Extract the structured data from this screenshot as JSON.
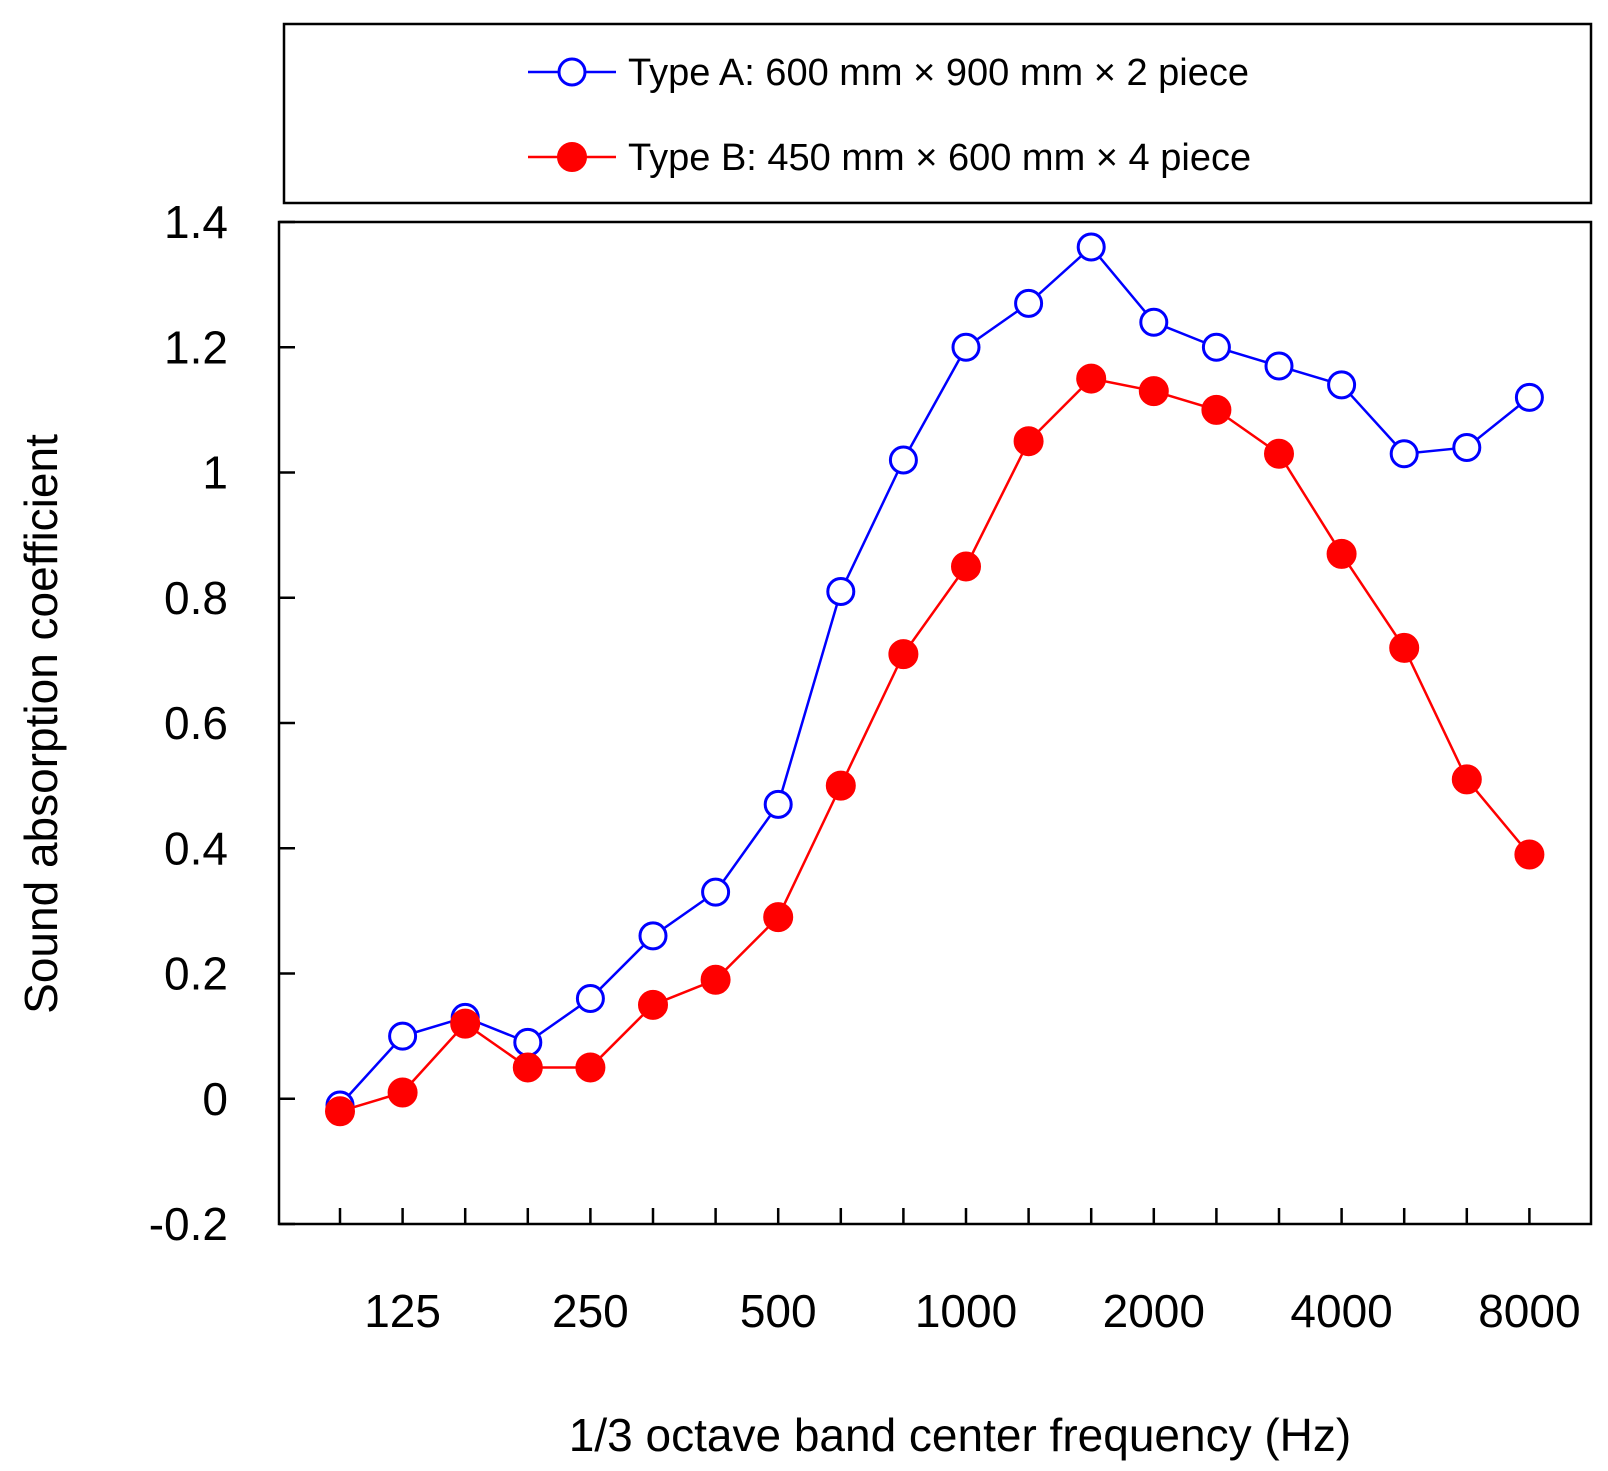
{
  "chart_data": {
    "type": "line",
    "title": "",
    "xlabel": "1/3 octave band center frequency (Hz)",
    "ylabel": "Sound absorption coefficient",
    "ylim": [
      -0.2,
      1.4
    ],
    "y_ticks": [
      -0.2,
      0,
      0.2,
      0.4,
      0.6,
      0.8,
      1,
      1.2,
      1.4
    ],
    "y_tick_labels": [
      "-0.2",
      "0",
      "0.2",
      "0.4",
      "0.6",
      "0.8",
      "1",
      "1.2",
      "1.4"
    ],
    "x": [
      100,
      125,
      160,
      200,
      250,
      315,
      400,
      500,
      630,
      800,
      1000,
      1250,
      1600,
      2000,
      2500,
      3150,
      4000,
      5000,
      6300,
      8000
    ],
    "x_tick_labels": [
      {
        "band": 125,
        "label": "125"
      },
      {
        "band": 250,
        "label": "250"
      },
      {
        "band": 500,
        "label": "500"
      },
      {
        "band": 1000,
        "label": "1000"
      },
      {
        "band": 2000,
        "label": "2000"
      },
      {
        "band": 4000,
        "label": "4000"
      },
      {
        "band": 8000,
        "label": "8000"
      }
    ],
    "grid": false,
    "legend_position": "top, above plot",
    "series": [
      {
        "name": "Type A: 600 mm × 900 mm × 2 piece",
        "color": "#0000ff",
        "marker": "open-circle",
        "values": [
          -0.01,
          0.1,
          0.13,
          0.09,
          0.16,
          0.26,
          0.33,
          0.47,
          0.81,
          1.02,
          1.2,
          1.27,
          1.36,
          1.24,
          1.2,
          1.17,
          1.14,
          1.03,
          1.04,
          1.12
        ]
      },
      {
        "name": "Type B: 450 mm × 600 mm × 4 piece",
        "color": "#ff0000",
        "marker": "filled-circle",
        "values": [
          -0.02,
          0.01,
          0.12,
          0.05,
          0.05,
          0.15,
          0.19,
          0.29,
          0.5,
          0.71,
          0.85,
          1.05,
          1.15,
          1.13,
          1.1,
          1.03,
          0.87,
          0.72,
          0.51,
          0.39
        ]
      }
    ]
  }
}
